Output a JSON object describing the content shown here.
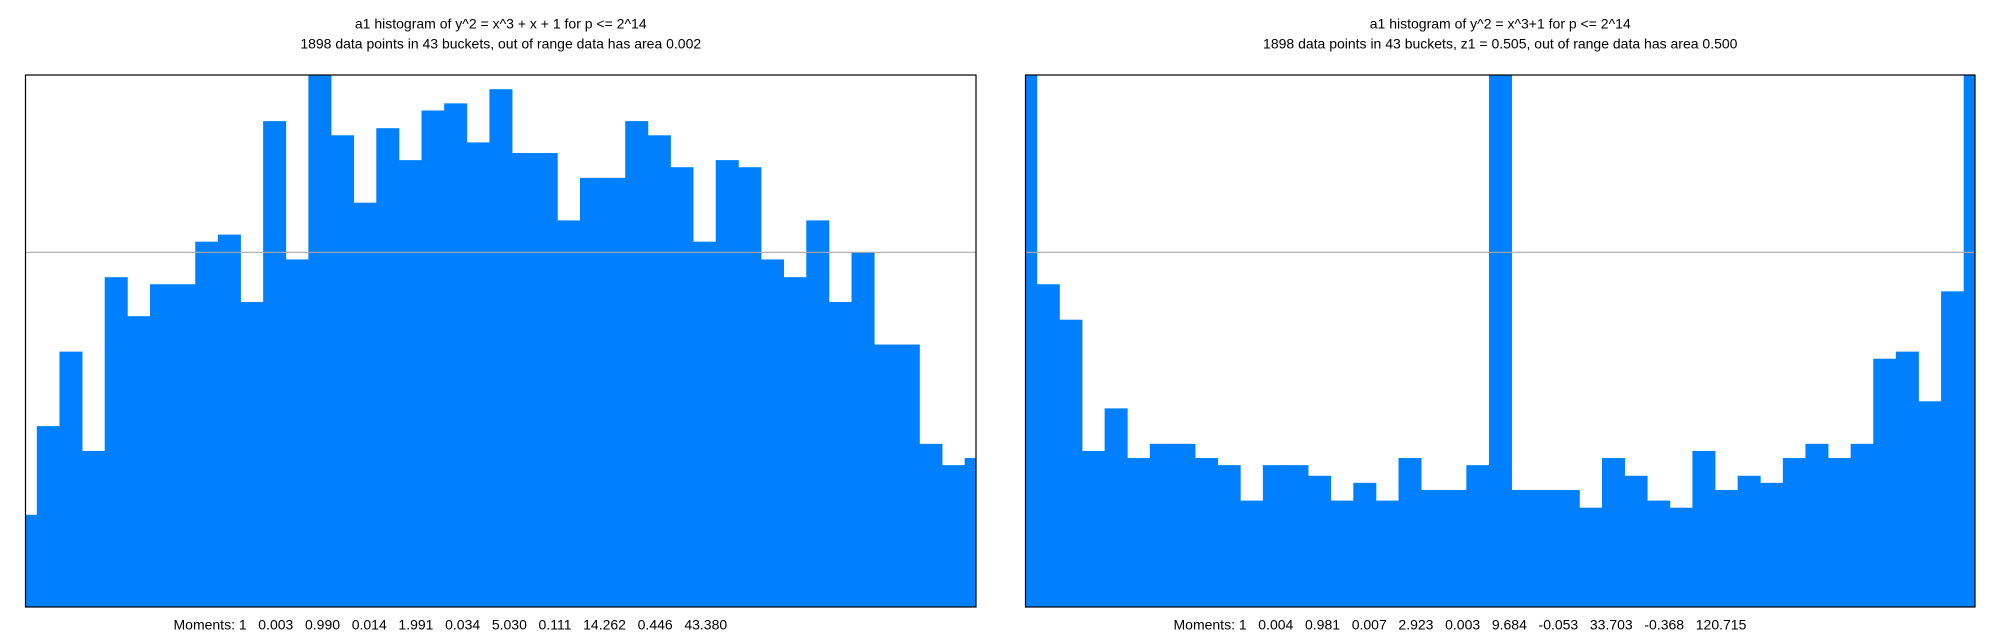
{
  "chart_data": [
    {
      "type": "histogram",
      "title": "a1 histogram of y^2 = x^3 + x + 1 for p <= 2^14",
      "subtitle": "1898 data points in 43 buckets, out of range data has area 0.002",
      "moments": "Moments: 1   0.003   0.990   0.014   1.991   0.034   5.030   0.111   14.262   0.446   43.380",
      "color": "#0080ff",
      "bins": [
        0,
        0.5,
        1.5,
        2.5,
        3.5,
        4.5,
        5.5,
        6.5,
        7.5,
        8.5,
        9.5,
        10.5,
        11.5,
        12.5,
        13.5,
        14.5,
        15.5,
        16.5,
        17.5,
        18.5,
        19.5,
        20.5,
        21.5,
        22.5,
        23.5,
        24.5,
        25.5,
        26.5,
        27.5,
        28.5,
        29.5,
        30.5,
        31.5,
        32.5,
        33.5,
        34.5,
        35.5,
        36.5,
        37.5,
        38.5,
        39.5,
        40.5,
        41.5,
        42
      ],
      "values": [
        0.26,
        0.51,
        0.72,
        0.44,
        0.93,
        0.82,
        0.91,
        0.91,
        1.03,
        1.05,
        0.86,
        1.37,
        0.98,
        1.5,
        1.33,
        1.14,
        1.35,
        1.26,
        1.4,
        1.42,
        1.31,
        1.46,
        1.28,
        1.28,
        1.09,
        1.21,
        1.21,
        1.37,
        1.33,
        1.24,
        1.03,
        1.26,
        1.24,
        0.98,
        0.93,
        1.09,
        0.86,
        1.0,
        0.74,
        0.74,
        0.46,
        0.4,
        0.42
      ],
      "xlim": [
        0,
        42
      ],
      "ylim": [
        0,
        1.5
      ],
      "reference_line": 1
    },
    {
      "type": "histogram",
      "title": "a1 histogram of y^2 = x^3+1 for p <= 2^14",
      "subtitle": "1898 data points in 43 buckets, z1 = 0.505, out of range data has area 0.500",
      "moments": "Moments: 1   0.004   0.981   0.007   2.923   0.003   9.684   -0.053   33.703   -0.368   120.715",
      "color": "#0080ff",
      "bins": [
        0,
        0.5,
        1.5,
        2.5,
        3.5,
        4.5,
        5.5,
        6.5,
        7.5,
        8.5,
        9.5,
        10.5,
        11.5,
        12.5,
        13.5,
        14.5,
        15.5,
        16.5,
        17.5,
        18.5,
        19.5,
        20.5,
        21.5,
        22.5,
        23.5,
        24.5,
        25.5,
        26.5,
        27.5,
        28.5,
        29.5,
        30.5,
        31.5,
        32.5,
        33.5,
        34.5,
        35.5,
        36.5,
        37.5,
        38.5,
        39.5,
        40.5,
        41.5,
        42
      ],
      "values": [
        1.5,
        0.91,
        0.81,
        0.44,
        0.56,
        0.42,
        0.46,
        0.46,
        0.42,
        0.4,
        0.3,
        0.4,
        0.4,
        0.37,
        0.3,
        0.35,
        0.3,
        0.42,
        0.33,
        0.33,
        0.4,
        1.5,
        0.33,
        0.33,
        0.33,
        0.28,
        0.42,
        0.37,
        0.3,
        0.28,
        0.44,
        0.33,
        0.37,
        0.35,
        0.42,
        0.46,
        0.42,
        0.46,
        0.7,
        0.72,
        0.58,
        0.89,
        1.5
      ],
      "xlim": [
        0,
        42
      ],
      "ylim": [
        0,
        1.5
      ],
      "reference_line": 1
    }
  ]
}
